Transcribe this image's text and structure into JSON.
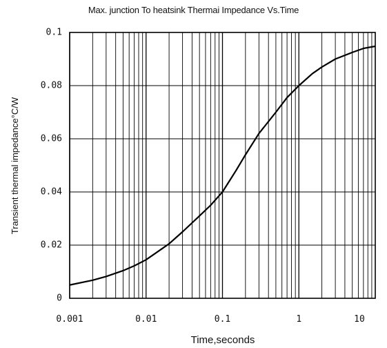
{
  "chart_data": {
    "type": "line",
    "title": "Max. junction To heatsink Thermai Impedance Vs.Time",
    "xlabel": "Time,seconds",
    "ylabel": "Transient thermal impedance°C/W",
    "x_scale": "log",
    "xlim": [
      0.001,
      10
    ],
    "ylim": [
      0,
      0.1
    ],
    "grid": true,
    "x_tick_labels": [
      "0.001",
      "0.01",
      "0.1",
      "1",
      "10"
    ],
    "y_tick_labels": [
      "0",
      "0.02",
      "0.04",
      "0.06",
      "0.08",
      "0.1"
    ],
    "x_ticks": [
      0.001,
      0.01,
      0.1,
      1,
      10
    ],
    "y_ticks": [
      0,
      0.02,
      0.04,
      0.06,
      0.08,
      0.1
    ],
    "series": [
      {
        "x": [
          0.001,
          0.002,
          0.003,
          0.005,
          0.007,
          0.01,
          0.015,
          0.02,
          0.03,
          0.05,
          0.07,
          0.1,
          0.15,
          0.2,
          0.3,
          0.5,
          0.7,
          1,
          1.5,
          2,
          3,
          5,
          7,
          10
        ],
        "values": [
          0.005,
          0.0068,
          0.0082,
          0.0104,
          0.0122,
          0.0145,
          0.018,
          0.0205,
          0.025,
          0.031,
          0.035,
          0.04,
          0.048,
          0.054,
          0.062,
          0.07,
          0.0755,
          0.08,
          0.0845,
          0.087,
          0.09,
          0.0925,
          0.094,
          0.0948
        ]
      }
    ]
  }
}
